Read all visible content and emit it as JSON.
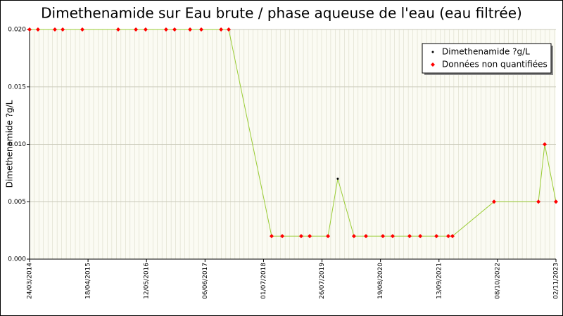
{
  "chart_data": {
    "type": "line",
    "title": "Dimethenamide sur Eau brute / phase aqueuse de l'eau (eau filtrée)",
    "y_label": "Dimethenamide ?g/L",
    "x": [
      "2014-03-24",
      "2014-05-19",
      "2014-09-09",
      "2014-10-31",
      "2015-03-11",
      "2015-11-05",
      "2016-03-02",
      "2016-05-06",
      "2016-09-19",
      "2016-11-15",
      "2017-02-26",
      "2017-05-12",
      "2017-09-21",
      "2017-11-11",
      "2018-08-24",
      "2018-11-03",
      "2019-03-09",
      "2019-05-05",
      "2019-09-04",
      "2019-11-08",
      "2020-02-24",
      "2020-05-14",
      "2020-09-04",
      "2020-11-08",
      "2021-03-01",
      "2021-05-11",
      "2021-08-27",
      "2021-11-14",
      "2021-12-12",
      "2022-09-15",
      "2023-07-08",
      "2023-08-19",
      "2023-11-02"
    ],
    "series": [
      {
        "name": "Dimethenamide ?g/L",
        "color": "#99cc33",
        "marker_color": "#000000",
        "values": [
          0.02,
          0.02,
          0.02,
          0.02,
          0.02,
          0.02,
          0.02,
          0.02,
          0.02,
          0.02,
          0.02,
          0.02,
          0.02,
          0.02,
          0.002,
          0.002,
          0.002,
          0.002,
          0.002,
          0.007,
          0.002,
          0.002,
          0.002,
          0.002,
          0.002,
          0.002,
          0.002,
          0.002,
          0.002,
          0.005,
          0.005,
          0.01,
          0.005
        ]
      },
      {
        "name": "Données non quantifiées",
        "color": "#ff0000",
        "values": [
          0.02,
          0.02,
          0.02,
          0.02,
          0.02,
          0.02,
          0.02,
          0.02,
          0.02,
          0.02,
          0.02,
          0.02,
          0.02,
          0.02,
          0.002,
          0.002,
          0.002,
          0.002,
          0.002,
          null,
          0.002,
          0.002,
          0.002,
          0.002,
          0.002,
          0.002,
          0.002,
          0.002,
          0.002,
          0.005,
          0.005,
          0.01,
          0.005
        ]
      }
    ],
    "xlim": [
      "2014-03-24",
      "2023-11-02"
    ],
    "xticks": [
      {
        "value": "2014-03-24",
        "label": "24/03/2014"
      },
      {
        "value": "2015-04-18",
        "label": "18/04/2015"
      },
      {
        "value": "2016-05-12",
        "label": "12/05/2016"
      },
      {
        "value": "2017-06-06",
        "label": "06/06/2017"
      },
      {
        "value": "2018-07-01",
        "label": "01/07/2018"
      },
      {
        "value": "2019-07-26",
        "label": "26/07/2019"
      },
      {
        "value": "2020-08-19",
        "label": "19/08/2020"
      },
      {
        "value": "2021-09-13",
        "label": "13/09/2021"
      },
      {
        "value": "2022-10-08",
        "label": "08/10/2022"
      },
      {
        "value": "2023-11-02",
        "label": "02/11/2023"
      }
    ],
    "ylim": [
      0,
      0.02
    ],
    "yticks": [
      {
        "value": 0,
        "label": "0.000"
      },
      {
        "value": 0.005,
        "label": "0.005"
      },
      {
        "value": 0.01,
        "label": "0.010"
      },
      {
        "value": 0.015,
        "label": "0.015"
      },
      {
        "value": 0.02,
        "label": "0.020"
      }
    ],
    "grid": true,
    "legend": "top-right"
  }
}
